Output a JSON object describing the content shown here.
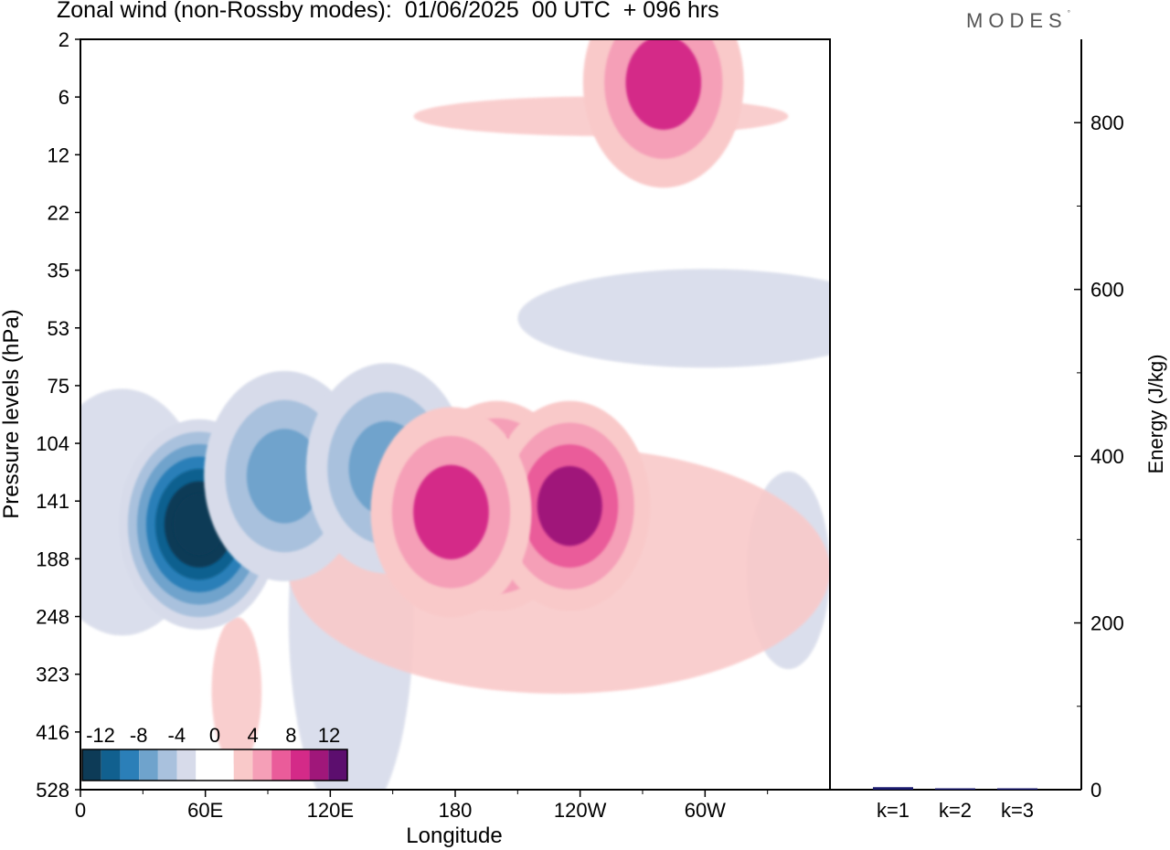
{
  "header": {
    "title": "Zonal wind (non-Rossby modes):  01/06/2025  00 UTC  + 096 hrs",
    "brand": "MODES"
  },
  "colors": {
    "scale": [
      "#0d3b57",
      "#11608f",
      "#2b7fb8",
      "#6fa3cc",
      "#a9c1dd",
      "#d7dbea",
      "#ffffff",
      "#ffffff",
      "#f9c9c9",
      "#f59fb7",
      "#ea5c9a",
      "#d42a88",
      "#a0177a",
      "#5c0e6e"
    ],
    "energy_bar": "#1a1a6e"
  },
  "chart_data": [
    {
      "type": "heatmap",
      "xlabel": "Longitude",
      "ylabel": "Pressure levels (hPa)",
      "x_ticks": [
        "0",
        "60E",
        "120E",
        "180",
        "120W",
        "60W"
      ],
      "x_tick_degrees": [
        0,
        60,
        120,
        180,
        240,
        300
      ],
      "xlim": [
        0,
        360
      ],
      "y_ticks": [
        2,
        6,
        12,
        22,
        35,
        53,
        75,
        104,
        141,
        188,
        248,
        323,
        416,
        528
      ],
      "ylim": [
        2,
        528
      ],
      "colorbar": {
        "labels": [
          "-12",
          "-8",
          "-4",
          "0",
          "4",
          "8",
          "12"
        ],
        "levels": [
          -12,
          -10,
          -8,
          -6,
          -4,
          -2,
          -1,
          0,
          1,
          2,
          4,
          6,
          8,
          10,
          12
        ]
      },
      "features": [
        {
          "name": "easterly core near 60E",
          "lon": 57,
          "level": 160,
          "value": -13
        },
        {
          "name": "easterly band near 100E",
          "lon": 98,
          "level": 125,
          "value": -6
        },
        {
          "name": "easterly patch near 145E",
          "lon": 147,
          "level": 120,
          "value": -6
        },
        {
          "name": "westerly core near 160W",
          "lon": 200,
          "level": 145,
          "value": 10
        },
        {
          "name": "westerly max near 120W",
          "lon": 235,
          "level": 145,
          "value": 8
        },
        {
          "name": "westerly patch near 180",
          "lon": 178,
          "level": 150,
          "value": 6
        },
        {
          "name": "upper westerly streak",
          "lon": 280,
          "level": 5,
          "value": 6
        }
      ]
    },
    {
      "type": "bar",
      "categories": [
        "k=1",
        "k=2",
        "k=3"
      ],
      "values": [
        3,
        1,
        1
      ],
      "ylabel": "Energy (J/kg)",
      "ylim": [
        0,
        900
      ],
      "y_ticks": [
        0,
        200,
        400,
        600,
        800
      ]
    }
  ]
}
